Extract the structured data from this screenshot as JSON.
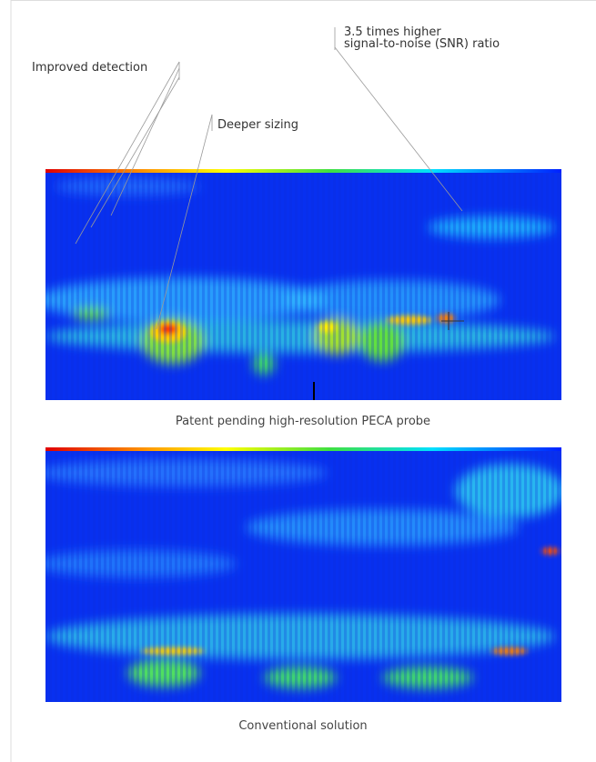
{
  "annotations": {
    "improved_detection": "Improved detection",
    "deeper_sizing": "Deeper sizing",
    "snr": [
      "3.5 times higher",
      "signal-to-noise (SNR) ratio"
    ]
  },
  "figures": [
    {
      "caption": "Patent pending high-resolution PECA probe"
    },
    {
      "caption": "Conventional solution"
    }
  ]
}
